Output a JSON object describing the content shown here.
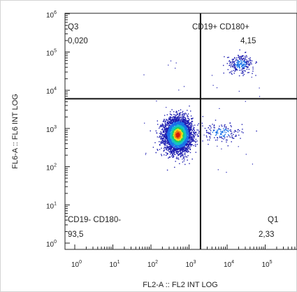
{
  "chart_data": {
    "type": "scatter",
    "title": "",
    "xlabel": "FL2-A :: FL2 INT LOG",
    "ylabel": "FL6-A :: FL6 INT LOG",
    "x_scale": "log",
    "y_scale": "log",
    "xlim": [
      1,
      1000000
    ],
    "ylim": [
      1,
      1000000
    ],
    "x_ticks": [
      {
        "base": "10",
        "exp": "0"
      },
      {
        "base": "10",
        "exp": "1"
      },
      {
        "base": "10",
        "exp": "2"
      },
      {
        "base": "10",
        "exp": "3"
      },
      {
        "base": "10",
        "exp": "4"
      },
      {
        "base": "10",
        "exp": "5"
      },
      {
        "base": "10",
        "exp": "6"
      }
    ],
    "y_ticks": [
      {
        "base": "10",
        "exp": "0"
      },
      {
        "base": "10",
        "exp": "1"
      },
      {
        "base": "10",
        "exp": "2"
      },
      {
        "base": "10",
        "exp": "3"
      },
      {
        "base": "10",
        "exp": "4"
      },
      {
        "base": "10",
        "exp": "5"
      },
      {
        "base": "10",
        "exp": "6"
      }
    ],
    "gate_x": 2000,
    "gate_y": 6000,
    "quadrants": [
      {
        "id": "q3",
        "name": "Q3",
        "value": "0,020"
      },
      {
        "id": "q2",
        "name": "CD19+ CD180+",
        "value": "4,15"
      },
      {
        "id": "q4",
        "name": "CD19- CD180-",
        "value": "93,5"
      },
      {
        "id": "q1",
        "name": "Q1",
        "value": "2,33"
      }
    ],
    "populations": [
      {
        "name": "main",
        "center": [
          500,
          700
        ],
        "spread_log": [
          0.18,
          0.22
        ],
        "share": 0.935,
        "color_scale": "density"
      },
      {
        "name": "right-shoulder",
        "center": [
          7000,
          800
        ],
        "spread_log": [
          0.28,
          0.12
        ],
        "share": 0.0233
      },
      {
        "name": "upper-right",
        "center": [
          22000,
          50000
        ],
        "spread_log": [
          0.17,
          0.12
        ],
        "share": 0.0415
      }
    ],
    "colors": {
      "sparse": "#1c1cb0",
      "mid": "#1a73e8",
      "dense1": "#16c0c8",
      "dense2": "#20d060",
      "dense3": "#f0e020",
      "dense4": "#f08010",
      "peak": "#d41a10",
      "gate_line": "#111111",
      "axis": "#222222"
    }
  }
}
